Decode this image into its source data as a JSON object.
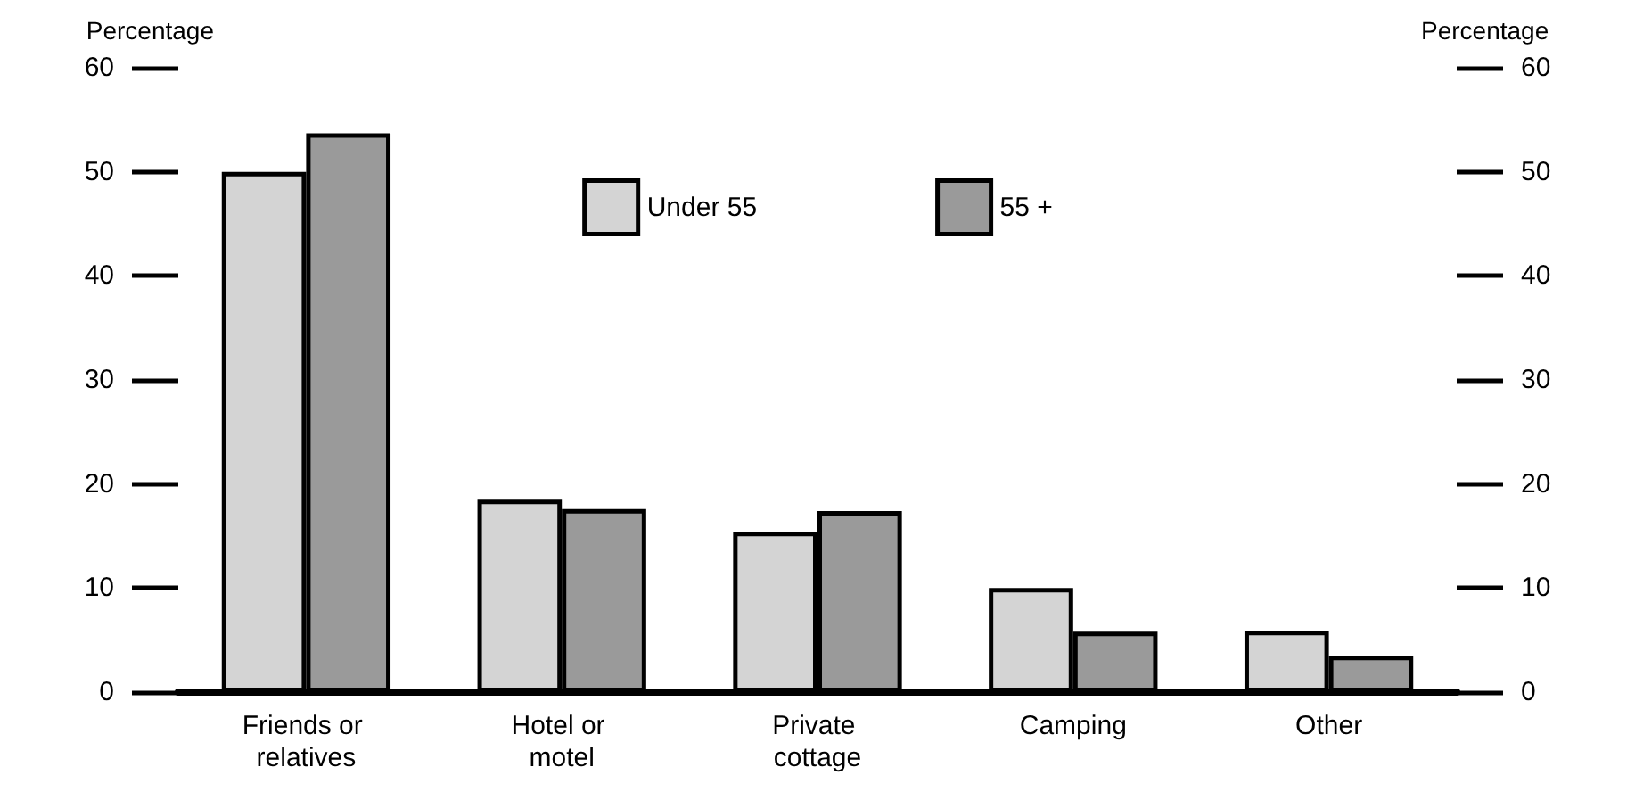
{
  "chart_data": {
    "type": "bar",
    "ylabel": "Percentage",
    "y2label": "Percentage",
    "categories": [
      "Friends or relatives",
      "Hotel or motel",
      "Private cottage",
      "Camping",
      "Other"
    ],
    "series": [
      {
        "name": "Under 55",
        "color": "#d4d4d4",
        "values": [
          50,
          18.5,
          15.4,
          10,
          5.9
        ]
      },
      {
        "name": "55 +",
        "color": "#9a9a9a",
        "values": [
          53.7,
          17.6,
          17.4,
          5.8,
          3.5
        ]
      }
    ],
    "ylim": [
      0,
      60
    ],
    "yticks": [
      0,
      10,
      20,
      30,
      40,
      50,
      60
    ],
    "y2lim": [
      0,
      60
    ],
    "y2ticks": [
      0,
      10,
      20,
      30,
      40,
      50,
      60
    ],
    "grid": false,
    "legend": "top"
  }
}
